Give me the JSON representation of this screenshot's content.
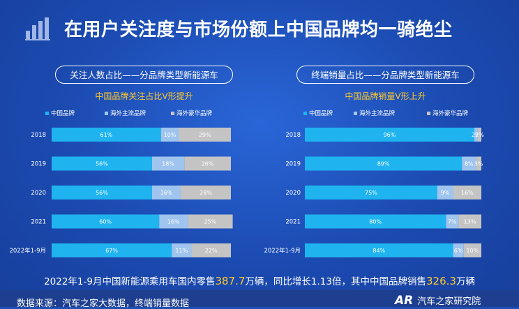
{
  "page": {
    "title": "在用户关注度与市场份额上中国品牌均一骑绝尘",
    "footer_prefix": "2022年1-9月中国新能源乘用车国内零售",
    "footer_value1": "387.7",
    "footer_mid": "万辆，同比增长1.13倍，其中中国品牌销售",
    "footer_value2": "326.3",
    "footer_suffix": "万辆",
    "source": "数据来源：汽车之家大数据，终端销量数据",
    "org_logo": "AR",
    "org_name": "汽车之家研究院"
  },
  "colors": {
    "china": "#1fb4f0",
    "overseas_main": "#9fc4ee",
    "overseas_lux": "#c4c4c4",
    "accent": "#ffc928"
  },
  "left_panel": {
    "title": "关注人数占比——分品牌类型新能源车",
    "subtitle": "中国品牌关注占比V形提升"
  },
  "right_panel": {
    "title": "终端销量占比——分品牌类型新能源车",
    "subtitle": "中国品牌销量V形上升"
  },
  "chart_data": [
    {
      "type": "bar",
      "orientation": "horizontal",
      "stacked": true,
      "categories": [
        "2018",
        "2019",
        "2020",
        "2021",
        "2022年1-9月"
      ],
      "series": [
        {
          "name": "中国品牌",
          "values": [
            61,
            56,
            56,
            60,
            67
          ],
          "labels": [
            "61%",
            "56%",
            "56%",
            "60%",
            "67%"
          ],
          "color": "#1fb4f0"
        },
        {
          "name": "海外主流品牌",
          "values": [
            10,
            18,
            16,
            16,
            11
          ],
          "labels": [
            "10%",
            "18%",
            "16%",
            "16%",
            "11%"
          ],
          "color": "#9fc4ee"
        },
        {
          "name": "海外豪华品牌",
          "values": [
            29,
            26,
            28,
            25,
            22
          ],
          "labels": [
            "29%",
            "26%",
            "28%",
            "25%",
            "22%"
          ],
          "color": "#c4c4c4"
        }
      ],
      "xlim": [
        0,
        100
      ],
      "legend": "top"
    },
    {
      "type": "bar",
      "orientation": "horizontal",
      "stacked": true,
      "categories": [
        "2018",
        "2019",
        "2020",
        "2021",
        "2022年1-9月"
      ],
      "series": [
        {
          "name": "中国品牌",
          "values": [
            96,
            89,
            75,
            80,
            84
          ],
          "labels": [
            "96%",
            "89%",
            "75%",
            "80%",
            "84%"
          ],
          "color": "#1fb4f0"
        },
        {
          "name": "海外主流品牌",
          "values": [
            2,
            8,
            9,
            7,
            6
          ],
          "labels": [
            "2%",
            "8%",
            "9%",
            "7%",
            "6%"
          ],
          "color": "#9fc4ee"
        },
        {
          "name": "海外豪华品牌",
          "values": [
            2,
            3,
            16,
            13,
            10
          ],
          "labels": [
            "2%",
            "3%",
            "16%",
            "13%",
            "10%"
          ],
          "color": "#c4c4c4"
        }
      ],
      "xlim": [
        0,
        100
      ],
      "legend": "top"
    }
  ]
}
